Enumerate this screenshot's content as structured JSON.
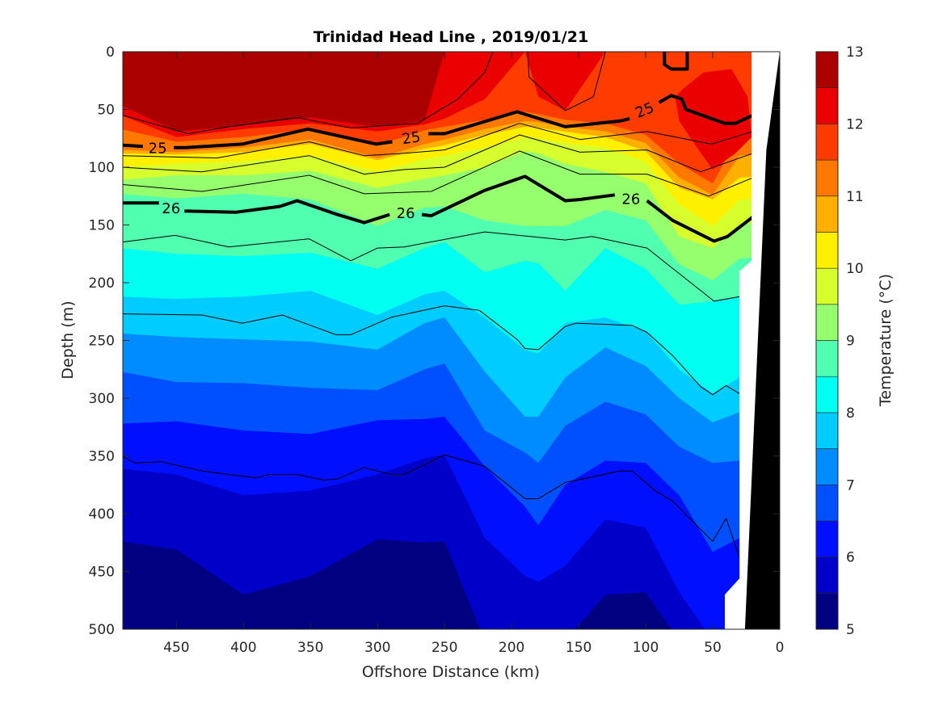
{
  "chart_data": {
    "type": "contourf",
    "title": "Trinidad Head Line , 2019/01/21",
    "xlabel": "Offshore Distance (km)",
    "ylabel": "Depth (m)",
    "colorbar_label": "Temperature (°C)",
    "xlim": [
      490,
      0
    ],
    "ylim": [
      0,
      500
    ],
    "x_reversed": true,
    "y_reversed": true,
    "xticks": [
      450,
      400,
      350,
      300,
      250,
      200,
      150,
      100,
      50,
      0
    ],
    "yticks": [
      0,
      50,
      100,
      150,
      200,
      250,
      300,
      350,
      400,
      450,
      500
    ],
    "colorbar_ticks": [
      5,
      6,
      7,
      8,
      9,
      10,
      11,
      12,
      13
    ],
    "color_levels": [
      5,
      5.5,
      6,
      6.5,
      7,
      7.5,
      8,
      8.5,
      9,
      9.5,
      10,
      10.5,
      11,
      11.5,
      12,
      12.5,
      13
    ],
    "band_colors": [
      "#000080",
      "#0000C8",
      "#0010FF",
      "#0050FF",
      "#008CFF",
      "#00CCFF",
      "#00FFF0",
      "#50FFAF",
      "#96FF6E",
      "#D7FF2D",
      "#FFF000",
      "#FFAF00",
      "#FF7800",
      "#FF3C00",
      "#EB0000",
      "#AA0000"
    ],
    "stations_km": [
      490,
      450,
      400,
      350,
      300,
      265,
      250,
      220,
      190,
      180,
      160,
      130,
      100,
      75,
      50,
      30,
      20
    ],
    "isotherm_thresholds": [
      12.5,
      12,
      11.5,
      11,
      10.5,
      10,
      9.5,
      9,
      8.5,
      8,
      7.5,
      7,
      6.5,
      6,
      5.5
    ],
    "isotherm_depths_m": [
      [
        46,
        55,
        67,
        85,
        88,
        100,
        111,
        123,
        170,
        212,
        244,
        277,
        322,
        361,
        424
      ],
      [
        69,
        74,
        78,
        87,
        89,
        97,
        107,
        127,
        175,
        214,
        247,
        286,
        320,
        366,
        431
      ],
      [
        64,
        67,
        74,
        83,
        87,
        95,
        107,
        123,
        177,
        212,
        249,
        287,
        328,
        384,
        470
      ],
      [
        57,
        62,
        67,
        76,
        80,
        90,
        103,
        128,
        174,
        207,
        251,
        291,
        331,
        380,
        454
      ],
      [
        65,
        69,
        81,
        92,
        94,
        104,
        118,
        151,
        188,
        228,
        258,
        293,
        319,
        366,
        422
      ],
      [
        60,
        63,
        68,
        80,
        84,
        93,
        110,
        135,
        170,
        210,
        235,
        275,
        318,
        352,
        425
      ],
      [
        0,
        58,
        65,
        76,
        81,
        90,
        107,
        134,
        165,
        207,
        230,
        270,
        316,
        349,
        424
      ],
      [
        0,
        41,
        59,
        67,
        72,
        83,
        100,
        146,
        191,
        230,
        277,
        328,
        359,
        421,
        510
      ],
      [
        0,
        0,
        52,
        60,
        65,
        74,
        86,
        151,
        181,
        258,
        316,
        347,
        394,
        454,
        510
      ],
      [
        0,
        39,
        54,
        61,
        66,
        75,
        88,
        151,
        183,
        261,
        316,
        356,
        410,
        459,
        510
      ],
      [
        0,
        51,
        59,
        65,
        69,
        79,
        97,
        151,
        207,
        235,
        282,
        324,
        375,
        445,
        510
      ],
      [
        0,
        0,
        62,
        69,
        74,
        83,
        104,
        137,
        170,
        230,
        256,
        303,
        354,
        405,
        470
      ],
      [
        0,
        0,
        72,
        79,
        86,
        95,
        114,
        146,
        188,
        242,
        272,
        314,
        356,
        412,
        468
      ],
      [
        0,
        0,
        97,
        109,
        118,
        132,
        160,
        184,
        219,
        275,
        300,
        342,
        384,
        468,
        510
      ],
      [
        0,
        0,
        114,
        124,
        128,
        151,
        170,
        198,
        216,
        296,
        321,
        356,
        433,
        510,
        510
      ],
      [
        0,
        0,
        72,
        90,
        109,
        128,
        149,
        179,
        212,
        282,
        312,
        354,
        421,
        510,
        510
      ],
      [
        0,
        0,
        70,
        88,
        107,
        126,
        147,
        177,
        210,
        280,
        310,
        352,
        419,
        510,
        510
      ]
    ],
    "patches": [
      {
        "band": "12-12.5",
        "color": "#EB0000",
        "points_km_m": [
          [
            72,
            32
          ],
          [
            57,
            18
          ],
          [
            36,
            15
          ],
          [
            24,
            39
          ],
          [
            21,
            74
          ],
          [
            33,
            88
          ],
          [
            50,
            102
          ],
          [
            63,
            81
          ],
          [
            75,
            60
          ],
          [
            78,
            39
          ]
        ]
      }
    ],
    "density_contours": [
      {
        "level": "25",
        "bold": true,
        "segments": [
          [
            [
              490,
              81
            ],
            [
              475,
              82
            ]
          ],
          [
            [
              452,
              83
            ],
            [
              443,
              83
            ],
            [
              401,
              80
            ],
            [
              352,
              67
            ],
            [
              301,
              80
            ],
            [
              289,
              78
            ]
          ],
          [
            [
              262,
              71
            ],
            [
              250,
              71
            ],
            [
              196,
              52
            ],
            [
              160,
              65
            ],
            [
              119,
              60
            ],
            [
              112,
              58
            ]
          ],
          [
            [
              90,
              44
            ],
            [
              81,
              38
            ],
            [
              73,
              41
            ],
            [
              70,
              50
            ],
            [
              41,
              62
            ],
            [
              33,
              62
            ],
            [
              20,
              55
            ]
          ]
        ],
        "labels": [
          [
            464,
            83
          ],
          [
            275,
            74
          ],
          [
            101,
            50
          ]
        ]
      },
      {
        "level": "26",
        "bold": true,
        "segments": [
          [
            [
              490,
              131
            ],
            [
              463,
              131
            ]
          ],
          [
            [
              444,
              138
            ],
            [
              406,
              139
            ],
            [
              373,
              134
            ],
            [
              360,
              129
            ],
            [
              330,
              141
            ],
            [
              310,
              148
            ],
            [
              291,
              141
            ]
          ],
          [
            [
              267,
              141
            ],
            [
              260,
              142
            ],
            [
              220,
              120
            ],
            [
              190,
              108
            ],
            [
              160,
              129
            ],
            [
              149,
              128
            ],
            [
              123,
              124
            ]
          ],
          [
            [
              99,
              129
            ],
            [
              80,
              146
            ],
            [
              49,
              164
            ],
            [
              39,
              160
            ],
            [
              20,
              143
            ]
          ]
        ],
        "labels": [
          [
            454,
            135
          ],
          [
            279,
            139
          ],
          [
            111,
            127
          ]
        ]
      },
      {
        "level": "",
        "bold": false,
        "segments": [
          [
            [
              490,
              55
            ],
            [
              441,
              71
            ],
            [
              411,
              65
            ],
            [
              360,
              57
            ],
            [
              320,
              66
            ],
            [
              270,
              62
            ],
            [
              240,
              41
            ],
            [
              220,
              18
            ],
            [
              214,
              0
            ]
          ],
          [
            [
              188,
              0
            ],
            [
              187,
              22
            ],
            [
              160,
              51
            ],
            [
              139,
              39
            ],
            [
              130,
              0
            ]
          ],
          [
            [
              491,
              90
            ],
            [
              420,
              92
            ],
            [
              351,
              78
            ],
            [
              310,
              90
            ],
            [
              280,
              88
            ],
            [
              250,
              85
            ],
            [
              194,
              62
            ],
            [
              149,
              76
            ],
            [
              99,
              69
            ],
            [
              51,
              80
            ],
            [
              20,
              69
            ]
          ],
          [
            [
              491,
              100
            ],
            [
              431,
              104
            ],
            [
              351,
              90
            ],
            [
              310,
              106
            ],
            [
              280,
              102
            ],
            [
              250,
              100
            ],
            [
              194,
              72
            ],
            [
              149,
              87
            ],
            [
              99,
              85
            ],
            [
              59,
              104
            ],
            [
              20,
              88
            ]
          ],
          [
            [
              491,
              115
            ],
            [
              431,
              121
            ],
            [
              351,
              107
            ],
            [
              310,
              123
            ],
            [
              260,
              121
            ],
            [
              194,
              86
            ],
            [
              149,
              106
            ],
            [
              99,
              106
            ],
            [
              53,
              125
            ],
            [
              20,
              109
            ]
          ],
          [
            [
              491,
              165
            ],
            [
              451,
              159
            ],
            [
              411,
              169
            ],
            [
              351,
              162
            ],
            [
              320,
              181
            ],
            [
              300,
              170
            ],
            [
              280,
              169
            ],
            [
              220,
              156
            ],
            [
              160,
              163
            ],
            [
              140,
              160
            ],
            [
              99,
              170
            ],
            [
              49,
              216
            ],
            [
              30,
              212
            ]
          ],
          [
            [
              491,
              227
            ],
            [
              431,
              228
            ],
            [
              401,
              235
            ],
            [
              371,
              228
            ],
            [
              331,
              245
            ],
            [
              320,
              245
            ],
            [
              290,
              230
            ],
            [
              250,
              220
            ],
            [
              224,
              224
            ],
            [
              196,
              249
            ],
            [
              190,
              257
            ],
            [
              180,
              258
            ],
            [
              160,
              238
            ],
            [
              152,
              235
            ],
            [
              110,
              237
            ],
            [
              99,
              243
            ],
            [
              80,
              263
            ],
            [
              59,
              290
            ],
            [
              50,
              297
            ],
            [
              40,
              289
            ],
            [
              30,
              296
            ]
          ],
          [
            [
              491,
              350
            ],
            [
              481,
              356
            ],
            [
              461,
              355
            ],
            [
              431,
              363
            ],
            [
              390,
              369
            ],
            [
              381,
              366
            ],
            [
              360,
              366
            ],
            [
              340,
              371
            ],
            [
              330,
              370
            ],
            [
              310,
              360
            ],
            [
              290,
              366
            ],
            [
              280,
              366
            ],
            [
              250,
              349
            ],
            [
              220,
              359
            ],
            [
              190,
              387
            ],
            [
              180,
              387
            ],
            [
              160,
              373
            ],
            [
              119,
              363
            ],
            [
              110,
              363
            ],
            [
              93,
              380
            ],
            [
              80,
              389
            ],
            [
              50,
              424
            ],
            [
              40,
              404
            ],
            [
              30,
              438
            ]
          ]
        ],
        "labels": []
      },
      {
        "level": "",
        "bold": true,
        "segments": [
          [
            [
              86,
              0
            ],
            [
              86,
              11
            ],
            [
              81,
              15
            ],
            [
              69,
              15
            ],
            [
              69,
              0
            ]
          ]
        ],
        "labels": []
      }
    ],
    "no_data_region_km_m": [
      [
        21,
        0
      ],
      [
        0,
        0
      ],
      [
        20,
        500
      ],
      [
        41,
        500
      ],
      [
        41,
        470
      ],
      [
        30,
        456
      ],
      [
        30,
        190
      ],
      [
        21,
        181
      ]
    ],
    "bathymetry_km_m": [
      [
        0,
        0
      ],
      [
        0,
        500
      ],
      [
        26,
        500
      ],
      [
        10,
        85
      ]
    ]
  }
}
